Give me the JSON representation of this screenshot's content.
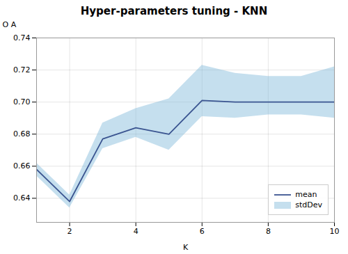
{
  "chart_data": {
    "type": "line",
    "title": "Hyper-parameters tuning - KNN",
    "xlabel": "K",
    "ylabel": "O A",
    "x": [
      1,
      2,
      3,
      4,
      5,
      6,
      7,
      8,
      9,
      10
    ],
    "series": [
      {
        "name": "mean",
        "type": "line",
        "color": "#3a5490",
        "values": [
          0.658,
          0.638,
          0.677,
          0.684,
          0.68,
          0.701,
          0.7,
          0.7,
          0.7,
          0.7
        ]
      },
      {
        "name": "stdDev",
        "type": "area",
        "color": "#7eb8d9",
        "lower": [
          0.654,
          0.634,
          0.671,
          0.678,
          0.67,
          0.691,
          0.69,
          0.692,
          0.692,
          0.69
        ],
        "upper": [
          0.662,
          0.642,
          0.687,
          0.696,
          0.702,
          0.723,
          0.718,
          0.716,
          0.716,
          0.722
        ]
      }
    ],
    "xlim": [
      1,
      10
    ],
    "xticks": [
      2,
      4,
      6,
      8,
      10
    ],
    "ylim": [
      0.625,
      0.74
    ],
    "yticks": [
      0.64,
      0.66,
      0.68,
      {
        "value": 0.7,
        "label": "0.70"
      },
      0.72,
      0.74
    ],
    "grid": true,
    "legend": "lower right"
  }
}
